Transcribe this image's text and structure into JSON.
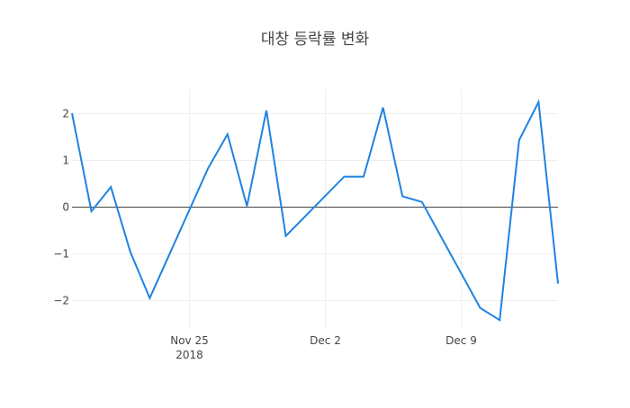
{
  "chart_data": {
    "type": "line",
    "title": "대창 등락률 변화",
    "xlabel": "",
    "ylabel": "",
    "ylim": [
      -2.6,
      2.5
    ],
    "grid": true,
    "legend": null,
    "x_tick_labels": [
      {
        "date": "2018-11-25",
        "label": "Nov 25",
        "sublabel": "2018"
      },
      {
        "date": "2018-12-02",
        "label": "Dec 2",
        "sublabel": ""
      },
      {
        "date": "2018-12-09",
        "label": "Dec 9",
        "sublabel": ""
      }
    ],
    "y_ticks": [
      2,
      1,
      0,
      -1,
      -2
    ],
    "y_tick_labels": [
      "2",
      "1",
      "0",
      "−1",
      "−2"
    ],
    "series": [
      {
        "name": "등락률",
        "color": "#1f83e0",
        "x": [
          "2018-11-19",
          "2018-11-20",
          "2018-11-21",
          "2018-11-22",
          "2018-11-23",
          "2018-11-26",
          "2018-11-27",
          "2018-11-28",
          "2018-11-29",
          "2018-11-30",
          "2018-12-03",
          "2018-12-04",
          "2018-12-05",
          "2018-12-06",
          "2018-12-07",
          "2018-12-10",
          "2018-12-11",
          "2018-12-12",
          "2018-12-13",
          "2018-12-14"
        ],
        "values": [
          2.0,
          -0.1,
          0.42,
          -0.97,
          -1.96,
          0.82,
          1.55,
          0.01,
          2.06,
          -0.63,
          0.64,
          0.64,
          2.12,
          0.22,
          0.1,
          -2.17,
          -2.43,
          1.42,
          2.24,
          -1.65
        ]
      }
    ],
    "x_range": [
      "2018-11-19",
      "2018-12-14"
    ]
  }
}
